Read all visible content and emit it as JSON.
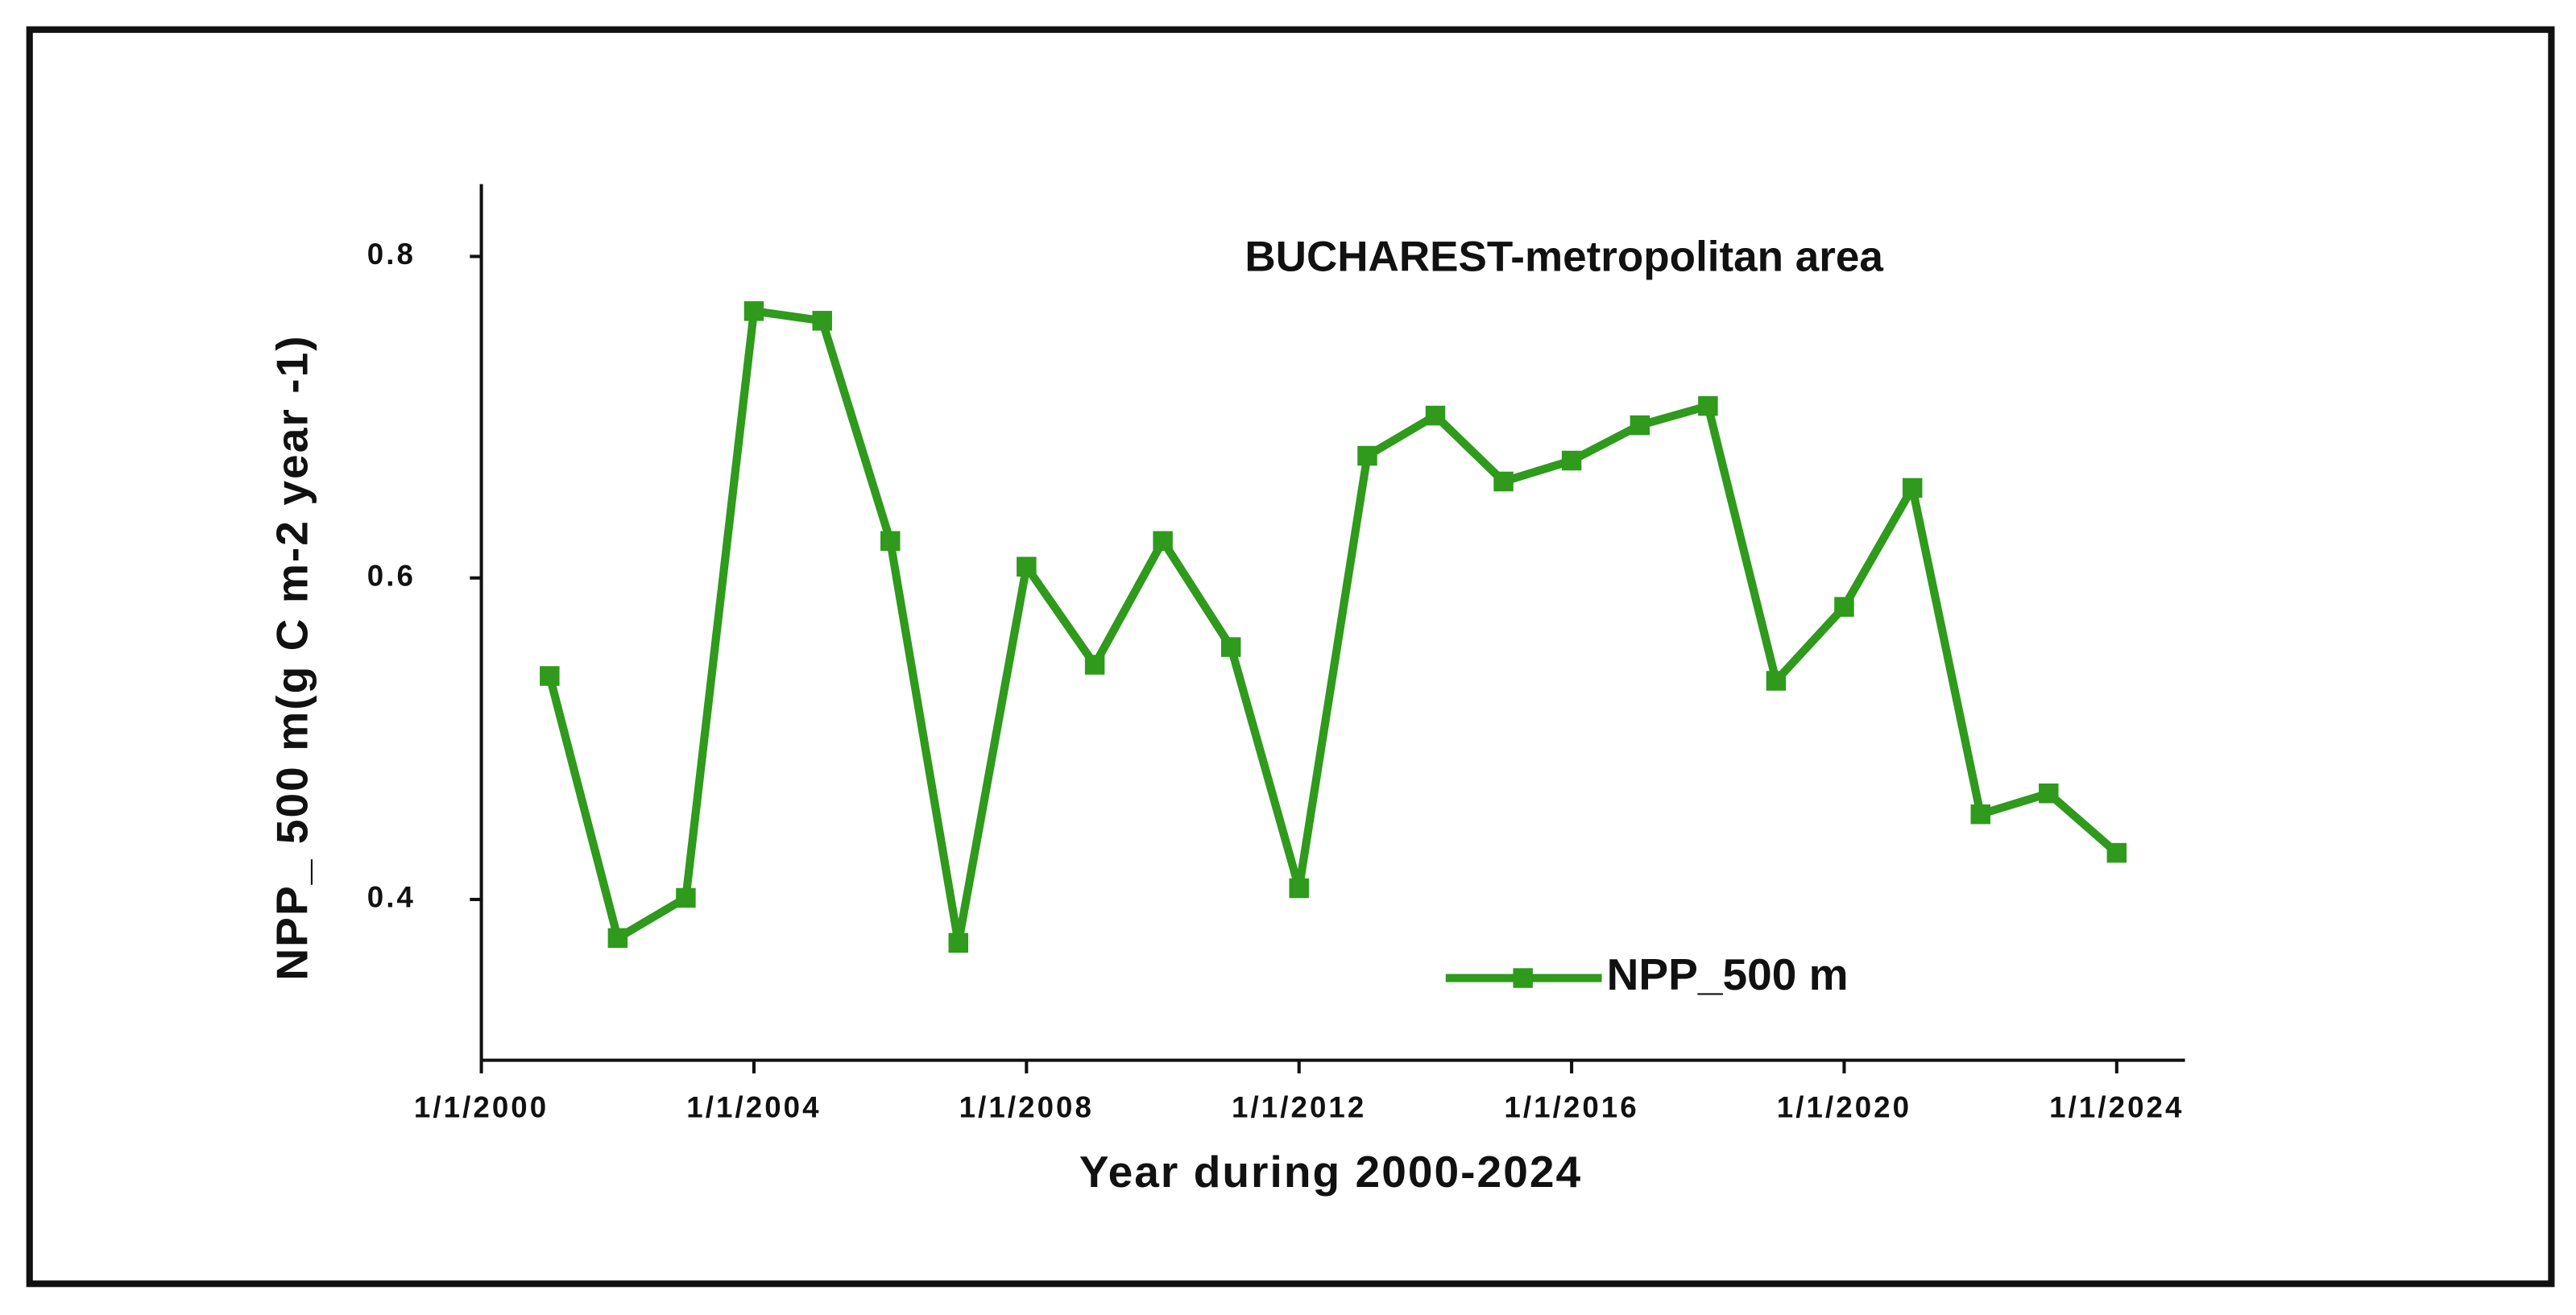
{
  "chart_data": {
    "type": "line",
    "title": "BUCHAREST-metropolitan area",
    "x_label": "Year during 2000-2024",
    "y_label": "NPP_ 500 m(g C m-2 year -1)",
    "x": [
      "1/1/2001",
      "1/1/2002",
      "1/1/2003",
      "1/1/2004",
      "1/1/2005",
      "1/1/2006",
      "1/1/2007",
      "1/1/2008",
      "1/1/2009",
      "1/1/2010",
      "1/1/2011",
      "1/1/2012",
      "1/1/2013",
      "1/1/2014",
      "1/1/2015",
      "1/1/2016",
      "1/1/2017",
      "1/1/2018",
      "1/1/2019",
      "1/1/2020",
      "1/1/2021",
      "1/1/2022",
      "1/1/2023",
      "1/1/2024"
    ],
    "series": [
      {
        "name": "NPP_500 m",
        "color": "#2f9a1c",
        "values": [
          0.539,
          0.376,
          0.401,
          0.766,
          0.76,
          0.623,
          0.373,
          0.607,
          0.546,
          0.623,
          0.557,
          0.407,
          0.676,
          0.701,
          0.66,
          0.673,
          0.695,
          0.707,
          0.536,
          0.582,
          0.656,
          0.453,
          0.466,
          0.429
        ]
      }
    ],
    "xlim": [
      "1/1/2000",
      "1/1/2025"
    ],
    "xticks": [
      "1/1/2000",
      "1/1/2004",
      "1/1/2008",
      "1/1/2012",
      "1/1/2016",
      "1/1/2020",
      "1/1/2024"
    ],
    "ylim": [
      0.3,
      0.845
    ],
    "yticks": [
      0.4,
      0.6,
      0.8
    ],
    "grid": false,
    "legend_position": "lower right",
    "title_color": "#e8157f"
  }
}
